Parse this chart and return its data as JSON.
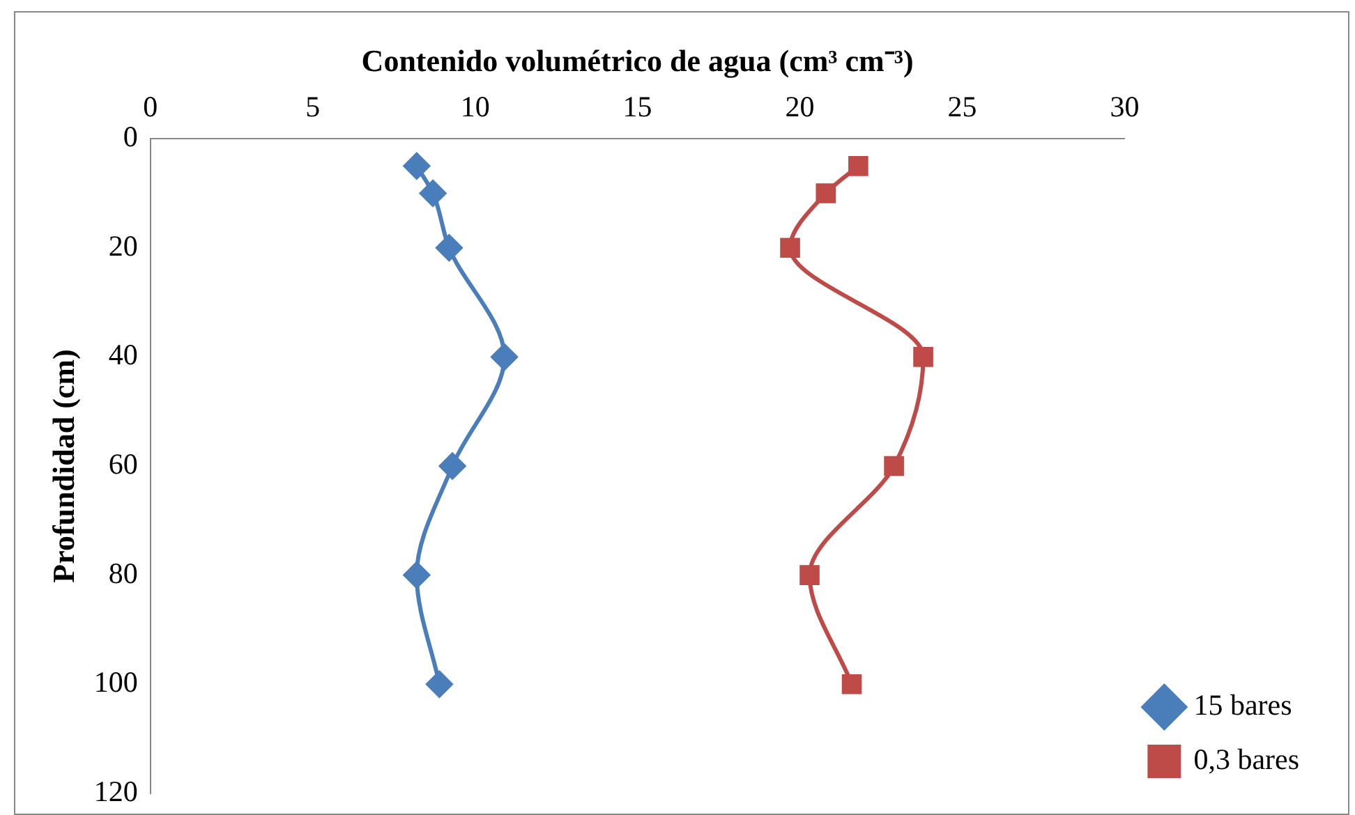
{
  "chart_data": {
    "type": "line",
    "xlabel": "Contenido volumétrico de agua (cm³ cm⁻³)",
    "ylabel": "Profundidad (cm)",
    "xlim": [
      0,
      30
    ],
    "xticks": [
      0,
      5,
      10,
      15,
      20,
      25,
      30
    ],
    "ylim": [
      120,
      0
    ],
    "yticks": [
      0,
      20,
      40,
      60,
      80,
      100,
      120
    ],
    "grid": false,
    "legend": "right",
    "series": [
      {
        "name": "15 bares",
        "color": "#4a7ebb",
        "marker": "diamond",
        "x": [
          8.2,
          8.7,
          9.2,
          10.9,
          9.3,
          8.2,
          8.9
        ],
        "values": [
          5,
          10,
          20,
          40,
          60,
          80,
          100
        ]
      },
      {
        "name": "0,3 bares",
        "color": "#be4b48",
        "marker": "square",
        "x": [
          21.8,
          20.8,
          19.7,
          23.8,
          22.9,
          20.3,
          21.6
        ],
        "values": [
          5,
          10,
          20,
          40,
          60,
          80,
          100
        ]
      }
    ]
  }
}
